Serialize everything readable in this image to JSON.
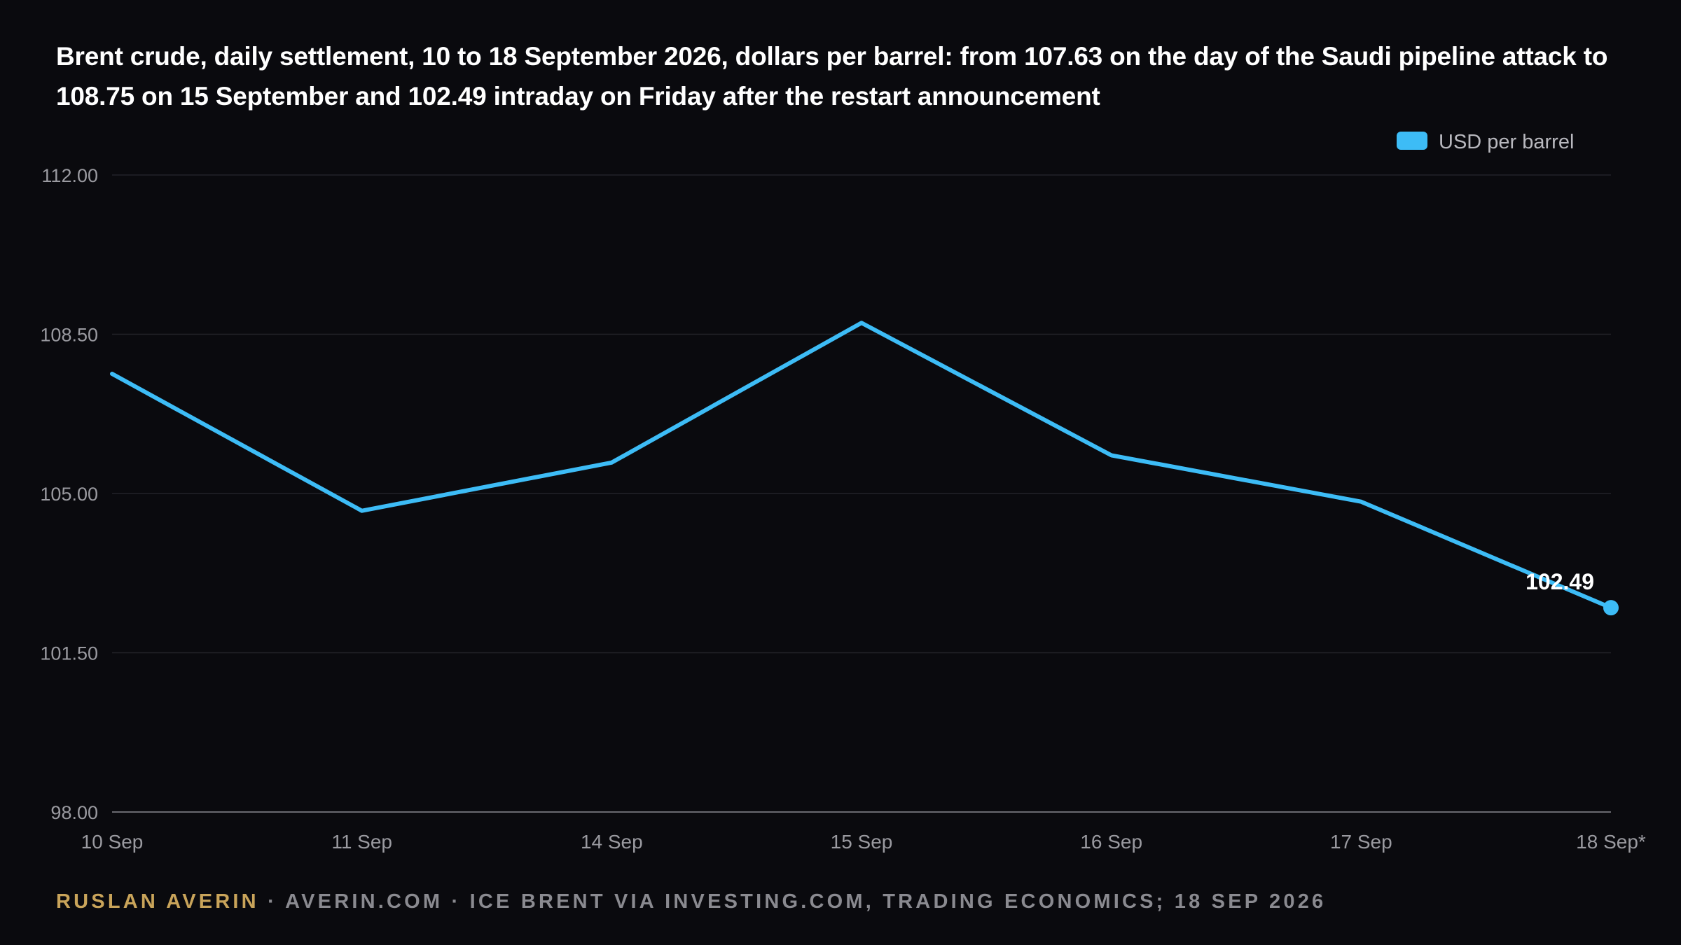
{
  "title": "Brent crude, daily settlement, 10 to 18 September 2026, dollars per barrel: from 107.63 on the day of the Saudi pipeline attack to 108.75 on 15 September and 102.49 intraday on Friday after the restart announcement",
  "footer": {
    "author": "RUSLAN AVERIN",
    "separator1": " · ",
    "site": "AVERIN.COM",
    "separator2": " · ",
    "source": "ICE BRENT VIA INVESTING.COM, TRADING ECONOMICS; 18 SEP 2026"
  },
  "chart_data": {
    "type": "line",
    "categories": [
      "10 Sep",
      "11 Sep",
      "14 Sep",
      "15 Sep",
      "16 Sep",
      "17 Sep",
      "18 Sep*"
    ],
    "series": [
      {
        "name": "USD per barrel",
        "color": "#3dbcf6",
        "values": [
          107.63,
          104.62,
          105.68,
          108.75,
          105.84,
          104.82,
          102.49
        ]
      }
    ],
    "ylim": [
      98,
      112
    ],
    "yticks": [
      "98.00",
      "101.50",
      "105.00",
      "108.50",
      "112.00"
    ],
    "ytick_values": [
      98,
      101.5,
      105,
      108.5,
      112
    ],
    "data_label": "102.49",
    "grid": true,
    "legend_position": "top-right",
    "colors": {
      "background": "#0a0a0e",
      "line": "#3dbcf6",
      "grid": "#232329",
      "axis_text": "#9a9aa0"
    }
  }
}
